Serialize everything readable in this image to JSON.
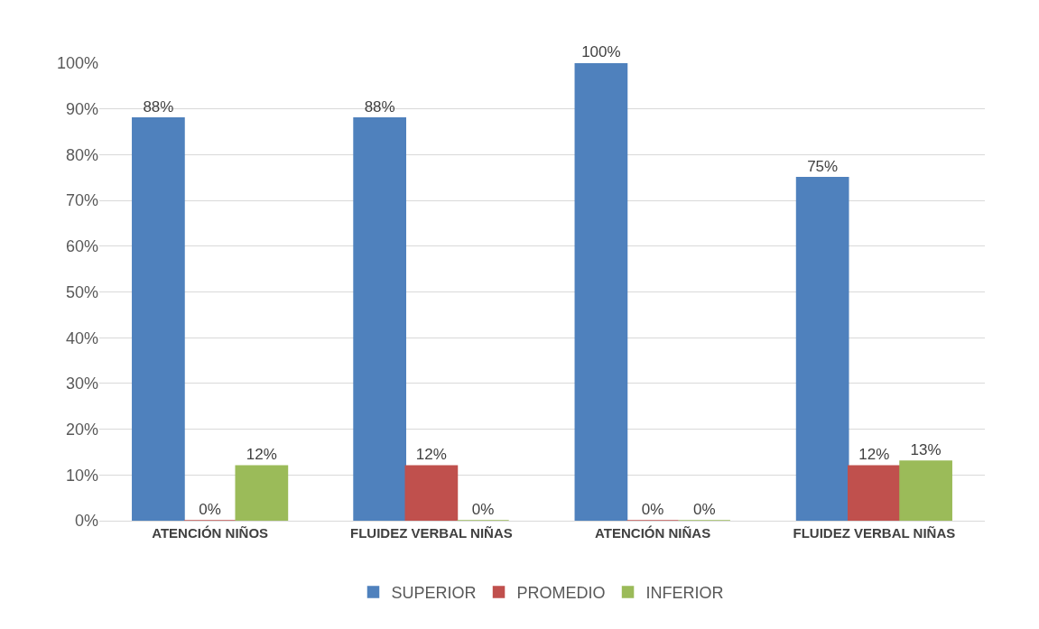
{
  "chart_data": {
    "type": "bar",
    "categories": [
      "ATENCIÓN NIÑOS",
      "FLUIDEZ VERBAL NIÑAS",
      "ATENCIÓN NIÑAS",
      "FLUIDEZ VERBAL NIÑAS"
    ],
    "series": [
      {
        "name": "SUPERIOR",
        "color": "#4f81bd",
        "values": [
          88,
          88,
          100,
          75
        ],
        "value_labels": [
          "88%",
          "88%",
          "100%",
          "75%"
        ]
      },
      {
        "name": "PROMEDIO",
        "color": "#c0504d",
        "values": [
          0,
          12,
          0,
          12
        ],
        "value_labels": [
          "0%",
          "12%",
          "0%",
          "12%"
        ]
      },
      {
        "name": "INFERIOR",
        "color": "#9bbb59",
        "values": [
          12,
          0,
          0,
          13
        ],
        "value_labels": [
          "12%",
          "0%",
          "0%",
          "13%"
        ]
      }
    ],
    "ylim": [
      0,
      100
    ],
    "yticks": [
      {
        "value": 0,
        "label": "0%"
      },
      {
        "value": 10,
        "label": "10%"
      },
      {
        "value": 20,
        "label": "20%"
      },
      {
        "value": 30,
        "label": "30%"
      },
      {
        "value": 40,
        "label": "40%"
      },
      {
        "value": 50,
        "label": "50%"
      },
      {
        "value": 60,
        "label": "60%"
      },
      {
        "value": 70,
        "label": "70%"
      },
      {
        "value": 80,
        "label": "80%"
      },
      {
        "value": 90,
        "label": "90%"
      },
      {
        "value": 100,
        "label": "100%"
      }
    ],
    "grid": "y",
    "legend": "bottom"
  }
}
